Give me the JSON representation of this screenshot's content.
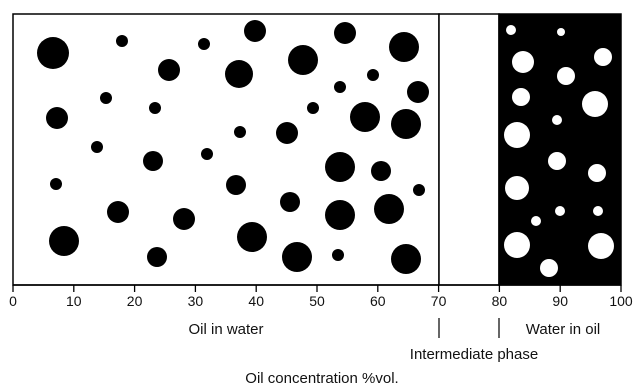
{
  "diagram": {
    "axis": {
      "min": 0,
      "max": 100,
      "ticks": [
        "0",
        "10",
        "20",
        "30",
        "40",
        "50",
        "60",
        "70",
        "80",
        "90",
        "100"
      ],
      "title": "Oil concentration %vol."
    },
    "regions": [
      {
        "label": "Oil in water",
        "from": 0,
        "to": 70,
        "background": "#ffffff",
        "droplet_color": "#000000"
      },
      {
        "label": "Intermediate phase",
        "from": 70,
        "to": 80,
        "background": "#ffffff"
      },
      {
        "label": "Water in oil",
        "from": 80,
        "to": 100,
        "background": "#000000",
        "droplet_color": "#ffffff"
      }
    ],
    "colors": {
      "ink": "#000000",
      "paper": "#ffffff"
    }
  }
}
